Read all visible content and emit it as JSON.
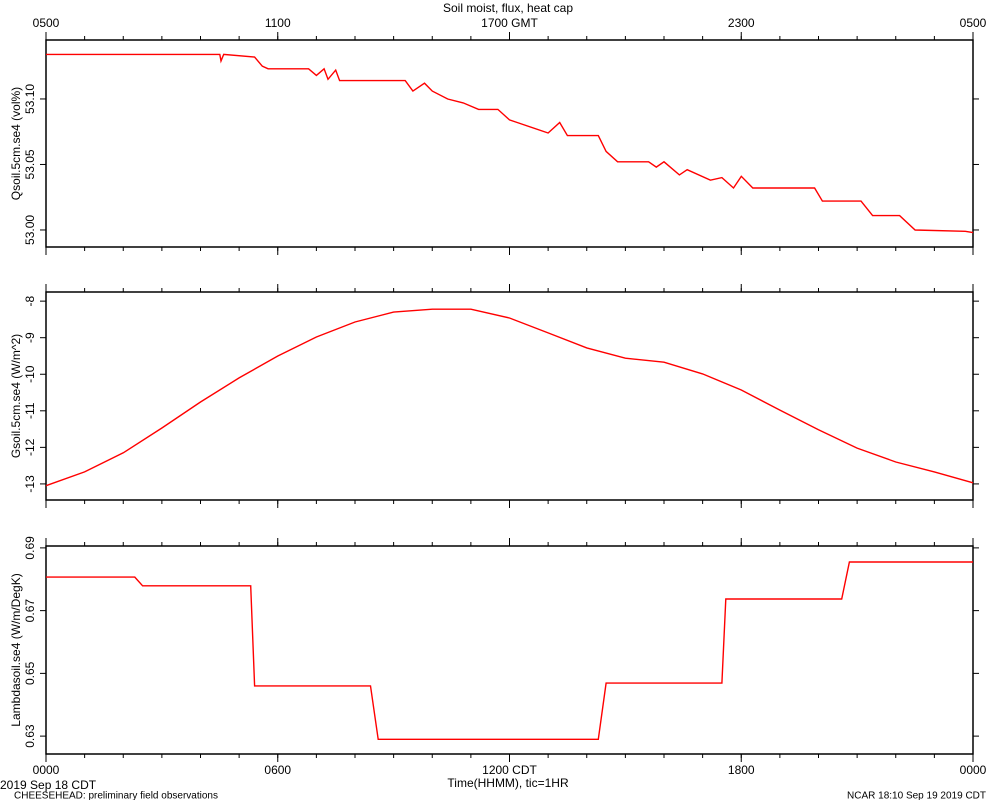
{
  "chart_data": [
    {
      "type": "line",
      "title": "Soil moist, flux, heat cap",
      "x2ticks": [
        {
          "value": 0,
          "label": "0500"
        },
        {
          "value": 6,
          "label": "1100"
        },
        {
          "value": 12,
          "label": "1700 GMT"
        },
        {
          "value": 18,
          "label": "2300"
        },
        {
          "value": 24,
          "label": "0500"
        }
      ],
      "ylabel": "Qsoil.5cm.se4 (vol%)",
      "ylim": [
        52.987,
        53.145
      ],
      "yticks": [
        {
          "value": 53,
          "label": "53.00"
        },
        53.05,
        {
          "value": 53.1,
          "label": "53.10"
        }
      ],
      "color": "#ff0000",
      "x": [
        0,
        4.5,
        4.53,
        4.6,
        5.4,
        5.6,
        5.75,
        6.8,
        7.0,
        7.2,
        7.3,
        7.5,
        7.6,
        9.3,
        9.5,
        9.8,
        10.0,
        10.4,
        10.8,
        11.2,
        11.7,
        12.0,
        12.2,
        13.0,
        13.3,
        13.5,
        14.3,
        14.5,
        14.8,
        15.6,
        15.8,
        16.0,
        16.4,
        16.6,
        17.2,
        17.5,
        17.8,
        18.0,
        18.3,
        19.9,
        20.1,
        21.1,
        21.4,
        22.1,
        22.5,
        23.8,
        24
      ],
      "values": [
        53.134,
        53.134,
        53.129,
        53.134,
        53.132,
        53.125,
        53.123,
        53.123,
        53.118,
        53.123,
        53.115,
        53.122,
        53.114,
        53.114,
        53.106,
        53.112,
        53.106,
        53.1,
        53.097,
        53.092,
        53.092,
        53.084,
        53.082,
        53.074,
        53.082,
        53.072,
        53.072,
        53.06,
        53.052,
        53.052,
        53.048,
        53.052,
        53.042,
        53.046,
        53.038,
        53.04,
        53.032,
        53.041,
        53.032,
        53.032,
        53.022,
        53.022,
        53.011,
        53.011,
        53.0,
        52.999,
        52.998
      ]
    },
    {
      "type": "line",
      "ylabel": "Gsoil.5cm.se4 (W/m^2)",
      "ylim": [
        -13.44,
        -7.75
      ],
      "yticks": [
        -8,
        -9,
        -10,
        -11,
        -12,
        -13
      ],
      "color": "#ff0000",
      "x": [
        0,
        1,
        2,
        3,
        4,
        5,
        6,
        7,
        8,
        9,
        10,
        11,
        12,
        13,
        14,
        15,
        16,
        17,
        18,
        19,
        20,
        21,
        22,
        23,
        24
      ],
      "values": [
        -13.05,
        -12.67,
        -12.15,
        -11.47,
        -10.76,
        -10.1,
        -9.5,
        -8.98,
        -8.57,
        -8.3,
        -8.22,
        -8.22,
        -8.46,
        -8.87,
        -9.28,
        -9.56,
        -9.67,
        -9.99,
        -10.43,
        -10.98,
        -11.52,
        -12.02,
        -12.4,
        -12.67,
        -12.97
      ]
    },
    {
      "type": "line",
      "ylabel": "Lambdasoil.se4 (W/m/DegK)",
      "ylim": [
        0.6243,
        0.6906
      ],
      "yticks": [
        0.63,
        0.65,
        0.67,
        0.69
      ],
      "color": "#ff0000",
      "xlabel": "Time(HHMM), tic=1HR",
      "xlim": [
        0,
        24
      ],
      "xticks": [
        {
          "value": 0,
          "label": "0000"
        },
        {
          "value": 6,
          "label": "0600"
        },
        {
          "value": 12,
          "label": "1200 CDT"
        },
        {
          "value": 18,
          "label": "1800"
        },
        {
          "value": 24,
          "label": "0000"
        }
      ],
      "xticks_minor": [
        0,
        1,
        2,
        3,
        4,
        5,
        6,
        7,
        8,
        9,
        10,
        11,
        12,
        13,
        14,
        15,
        16,
        17,
        18,
        19,
        20,
        21,
        22,
        23,
        24
      ],
      "date": "2019 Sep 18 CDT",
      "footer_left": "CHEESEHEAD: preliminary field observations",
      "footer_right": "NCAR 18:10 Sep 19 2019 CDT",
      "x": [
        0,
        2.3,
        2.5,
        5.3,
        5.4,
        8.4,
        8.6,
        14.3,
        14.5,
        17.5,
        17.6,
        20.6,
        20.8,
        24
      ],
      "values": [
        0.6807,
        0.6807,
        0.6779,
        0.6779,
        0.646,
        0.646,
        0.629,
        0.629,
        0.6469,
        0.6469,
        0.6737,
        0.6737,
        0.6855,
        0.6855
      ]
    }
  ]
}
